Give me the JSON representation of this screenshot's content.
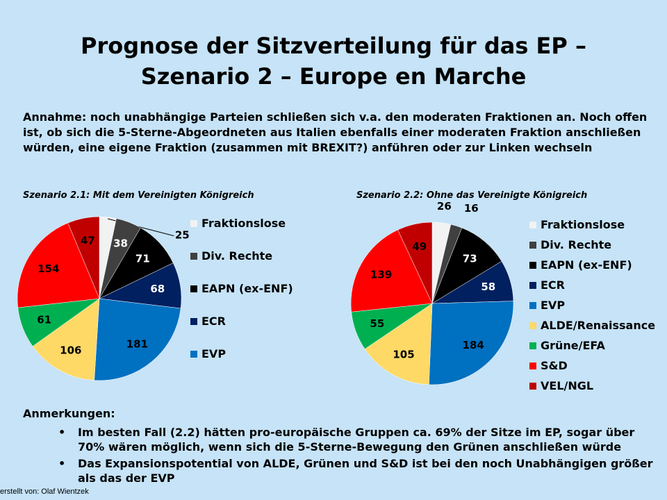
{
  "title_line1": "Prognose der Sitzverteilung für das EP –",
  "title_line2": "Szenario 2 – Europe en Marche",
  "assumption": "Annahme: noch unabhängige Parteien schließen sich v.a. den moderaten Fraktionen an. Noch offen ist, ob sich die 5-Sterne-Abgeordneten aus Italien ebenfalls einer moderaten Fraktion anschließen würden, eine eigene Fraktion (zusammen mit BREXIT?) anführen oder zur Linken wechseln",
  "chart_data": [
    {
      "type": "pie",
      "title": "Szenario 2.1: Mit dem Vereinigten Königreich",
      "slices": [
        {
          "label": "Fraktionslose",
          "value": 25,
          "color": "#f2f2f2",
          "label_color": "#000000"
        },
        {
          "label": "Div. Rechte",
          "value": 38,
          "color": "#404040",
          "label_color": "#ffffff"
        },
        {
          "label": "EAPN (ex-ENF)",
          "value": 71,
          "color": "#000000",
          "label_color": "#ffffff"
        },
        {
          "label": "ECR",
          "value": 68,
          "color": "#002060",
          "label_color": "#ffffff"
        },
        {
          "label": "EVP",
          "value": 181,
          "color": "#0070c0",
          "label_color": "#000000"
        },
        {
          "label": "ALDE/Renaissance",
          "value": 106,
          "color": "#ffd966",
          "label_color": "#000000"
        },
        {
          "label": "Grüne/EFA",
          "value": 61,
          "color": "#00b050",
          "label_color": "#000000"
        },
        {
          "label": "S&D",
          "value": 154,
          "color": "#ff0000",
          "label_color": "#000000"
        },
        {
          "label": "VEL/NGL",
          "value": 47,
          "color": "#c00000",
          "label_color": "#000000"
        }
      ],
      "legend": [
        "Fraktionslose",
        "Div. Rechte",
        "EAPN (ex-ENF)",
        "ECR",
        "EVP"
      ]
    },
    {
      "type": "pie",
      "title": "Szenario 2.2: Ohne das Vereinigte Königreich",
      "slices": [
        {
          "label": "Fraktionslose",
          "value": 26,
          "color": "#f2f2f2",
          "label_color": "#000000"
        },
        {
          "label": "Div. Rechte",
          "value": 16,
          "color": "#404040",
          "label_color": "#000000"
        },
        {
          "label": "EAPN (ex-ENF)",
          "value": 73,
          "color": "#000000",
          "label_color": "#ffffff"
        },
        {
          "label": "ECR",
          "value": 58,
          "color": "#002060",
          "label_color": "#ffffff"
        },
        {
          "label": "EVP",
          "value": 184,
          "color": "#0070c0",
          "label_color": "#000000"
        },
        {
          "label": "ALDE/Renaissance",
          "value": 105,
          "color": "#ffd966",
          "label_color": "#000000"
        },
        {
          "label": "Grüne/EFA",
          "value": 55,
          "color": "#00b050",
          "label_color": "#000000"
        },
        {
          "label": "S&D",
          "value": 139,
          "color": "#ff0000",
          "label_color": "#000000"
        },
        {
          "label": "VEL/NGL",
          "value": 49,
          "color": "#c00000",
          "label_color": "#000000"
        }
      ],
      "legend": [
        "Fraktionslose",
        "Div. Rechte",
        "EAPN (ex-ENF)",
        "ECR",
        "EVP",
        "ALDE/Renaissance",
        "Grüne/EFA",
        "S&D",
        "VEL/NGL"
      ]
    }
  ],
  "notes_title": "Anmerkungen:",
  "notes": [
    "Im besten Fall (2.2) hätten pro-europäische Gruppen ca. 69% der Sitze im EP, sogar über 70% wären möglich, wenn sich die 5-Sterne-Bewegung den Grünen anschließen würde",
    "Das Expansionspotential von ALDE, Grünen und S&D ist bei den noch Unabhängigen größer als das der EVP"
  ],
  "footer": "erstellt von: Olaf Wientzek"
}
